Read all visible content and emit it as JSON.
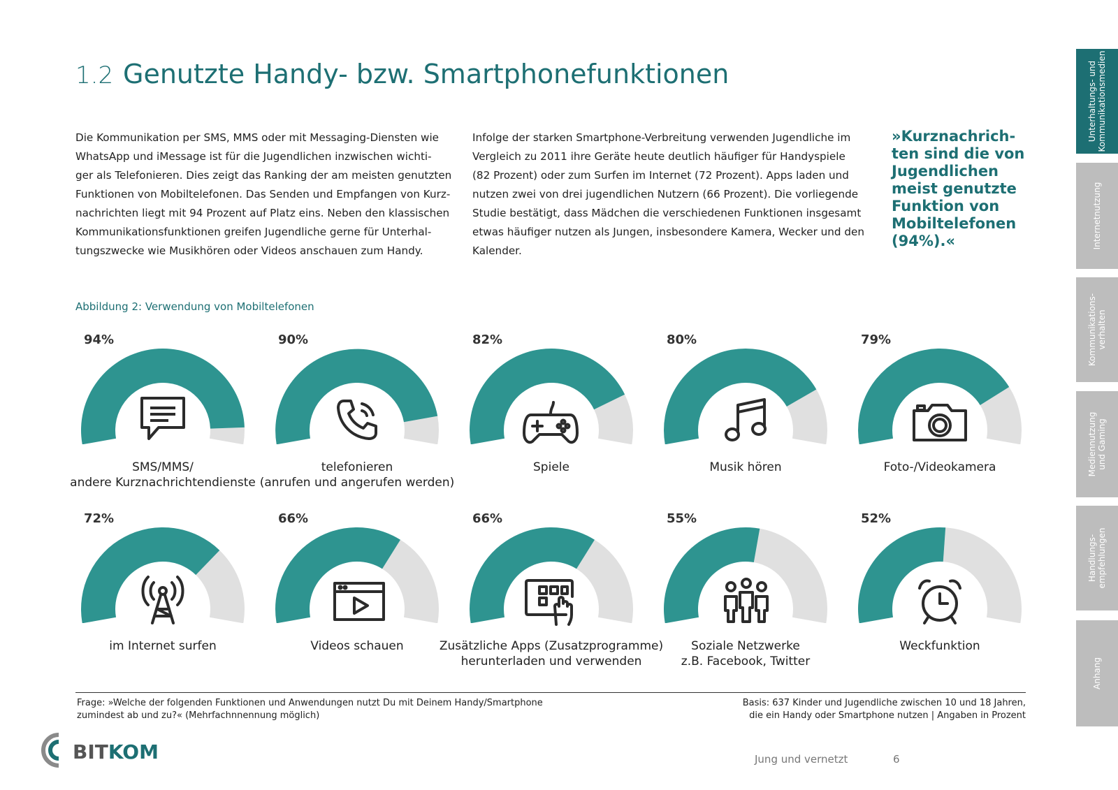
{
  "header": {
    "number": "1.2",
    "title": "Genutzte Handy- bzw. Smartphonefunktionen"
  },
  "body": {
    "col1_lines": [
      "Die Kommunikation per SMS, MMS oder mit Messaging-Diensten wie",
      "WhatsApp und iMessage ist für die Jugendlichen inzwischen wichti-",
      "ger als Telefonieren. Dies zeigt das Ranking der am meisten genutzten",
      "Funktionen von Mobiltelefonen. Das Senden und Empfangen von Kurz-",
      "nachrichten liegt mit 94 Prozent auf Platz eins. Neben den klassischen",
      "Kommunikationsfunktionen greifen Jugendliche gerne für Unterhal-",
      "tungszwecke wie Musikhören oder Videos anschauen zum Handy."
    ],
    "col2_lines": [
      "Infolge der starken Smartphone-Verbreitung verwenden Jugendliche im",
      "Vergleich zu 2011 ihre Geräte heute deutlich häufiger für Handyspiele",
      "(82 Prozent) oder zum Surfen im Internet (72 Prozent). Apps laden und",
      "nutzen zwei von drei jugendlichen Nutzern (66 Prozent). Die vorliegende",
      "Studie bestätigt, dass Mädchen die verschiedenen Funktionen insgesamt",
      "etwas häufiger nutzen als Jungen, insbesondere Kamera, Wecker und den",
      "Kalender."
    ],
    "quote_lines": [
      "»Kurznachrich-",
      "ten sind die von",
      "Jugendlichen",
      "meist genutzte",
      "Funktion von",
      "Mobiltelefonen",
      "(94%).«"
    ]
  },
  "figure": {
    "caption": "Abbildung 2: Verwendung von Mobiltelefonen"
  },
  "chart_data": {
    "type": "gauge",
    "colors": {
      "filled": "#2e9490",
      "empty": "#e0e0e0"
    },
    "items": [
      {
        "pct_label": "94%",
        "value": 94,
        "label_lines": [
          "SMS/MMS/",
          "andere Kurznachrichtendienste"
        ],
        "icon": "message-icon"
      },
      {
        "pct_label": "90%",
        "value": 90,
        "label_lines": [
          "telefonieren",
          "(anrufen und angerufen werden)"
        ],
        "icon": "phone-call-icon"
      },
      {
        "pct_label": "82%",
        "value": 82,
        "label_lines": [
          "Spiele"
        ],
        "icon": "gamepad-icon"
      },
      {
        "pct_label": "80%",
        "value": 80,
        "label_lines": [
          "Musik hören"
        ],
        "icon": "music-note-icon"
      },
      {
        "pct_label": "79%",
        "value": 79,
        "label_lines": [
          "Foto-/Videokamera"
        ],
        "icon": "camera-icon"
      },
      {
        "pct_label": "72%",
        "value": 72,
        "label_lines": [
          "im Internet surfen"
        ],
        "icon": "antenna-icon"
      },
      {
        "pct_label": "66%",
        "value": 66,
        "label_lines": [
          "Videos schauen"
        ],
        "icon": "video-player-icon"
      },
      {
        "pct_label": "66%",
        "value": 66,
        "label_lines": [
          "Zusätzliche Apps (Zusatzprogramme)",
          "herunterladen und verwenden"
        ],
        "icon": "tablet-touch-icon"
      },
      {
        "pct_label": "55%",
        "value": 55,
        "label_lines": [
          "Soziale Netzwerke",
          "z.B. Facebook, Twitter"
        ],
        "icon": "people-icon"
      },
      {
        "pct_label": "52%",
        "value": 52,
        "label_lines": [
          "Weckfunktion"
        ],
        "icon": "alarm-clock-icon"
      }
    ]
  },
  "notes": {
    "question_lines": [
      "Frage: »Welche der folgenden Funktionen und Anwendungen nutzt Du mit Deinem Handy/Smartphone",
      "zumindest ab und zu?« (Mehrfachnnennung möglich)"
    ],
    "basis_lines": [
      "Basis: 637 Kinder und Jugendliche zwischen 10 und 18 Jahren,",
      "die ein Handy oder Smartphone nutzen | Angaben in Prozent"
    ]
  },
  "logo": {
    "part1": "BIT",
    "part2": "KOM"
  },
  "footer": {
    "title": "Jung und vernetzt",
    "page": "6"
  },
  "tabs": [
    {
      "lines": [
        "Unterhaltungs- und",
        "Kommunikationsmedien"
      ],
      "active": true
    },
    {
      "lines": [
        "Internetnutzung"
      ],
      "active": false
    },
    {
      "lines": [
        "Kommunikations-",
        "verhalten"
      ],
      "active": false
    },
    {
      "lines": [
        "Mediennutzung",
        "und Gaming"
      ],
      "active": false
    },
    {
      "lines": [
        "Handlungs-",
        "empfehlungen"
      ],
      "active": false
    },
    {
      "lines": [
        "Anhang"
      ],
      "active": false
    }
  ]
}
